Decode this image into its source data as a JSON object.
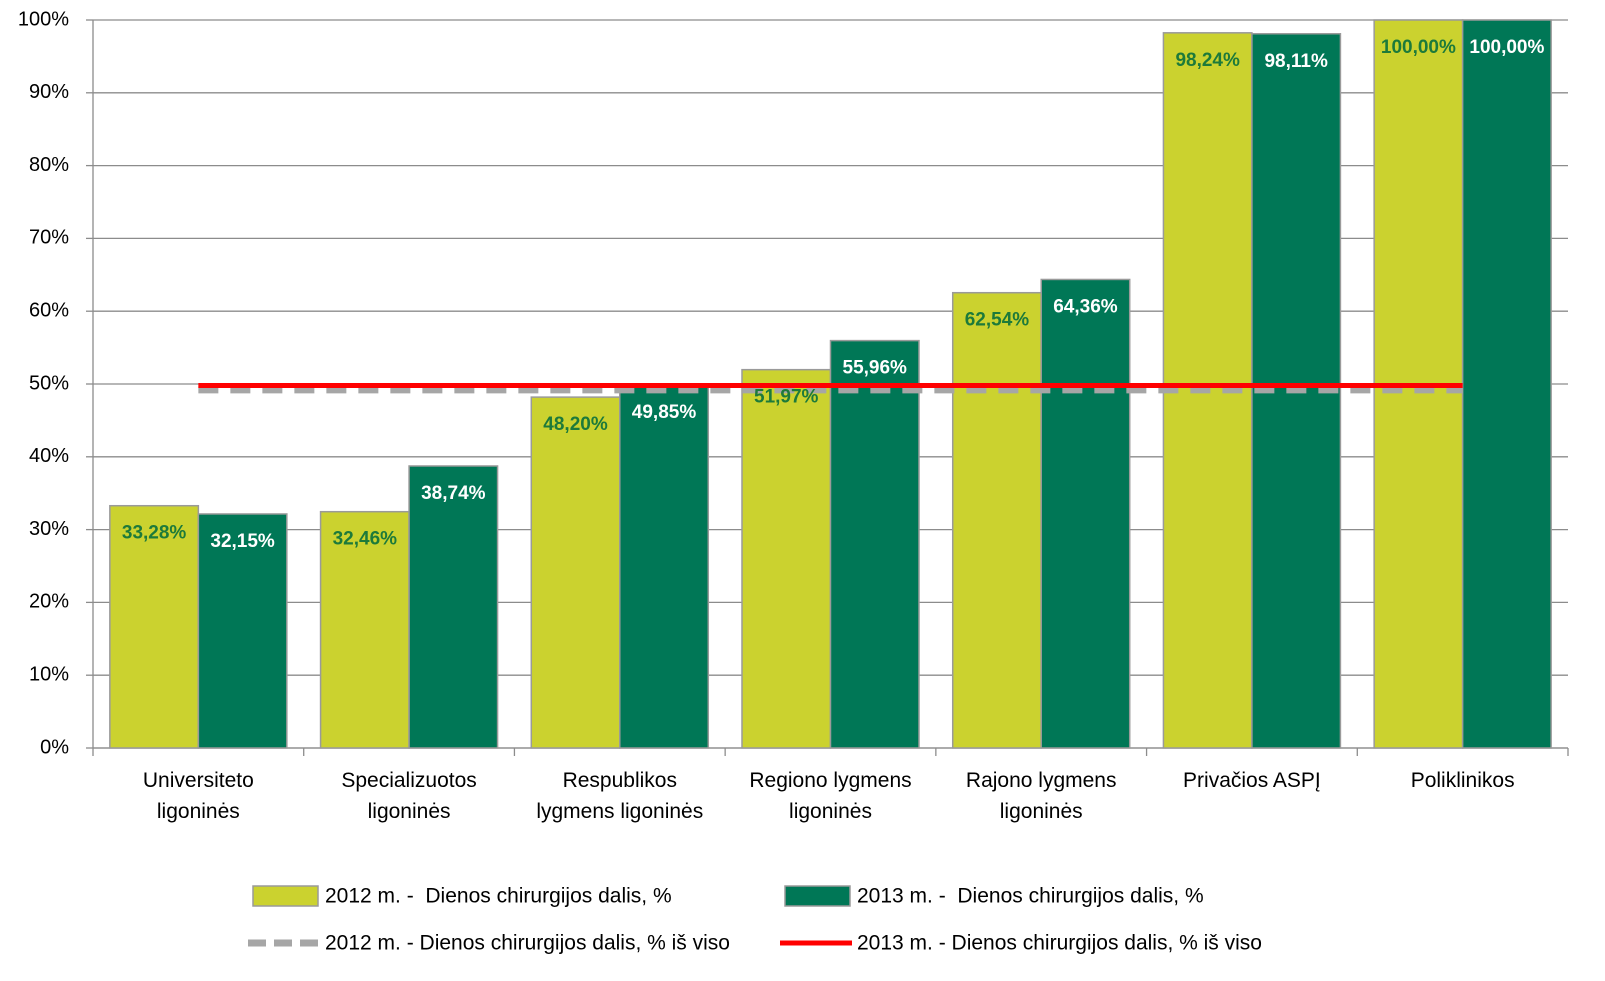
{
  "chart_data": {
    "type": "bar",
    "categories": [
      "Universiteto\nligoninės",
      "Specializuotos\nligoninės",
      "Respublikos\nlygmens ligoninės",
      "Regiono lygmens\nligoninės",
      "Rajono lygmens\nligoninės",
      "Privačios ASPĮ",
      "Poliklinikos"
    ],
    "series": [
      {
        "name": "2012 m. -  Dienos chirurgijos dalis, %",
        "type": "bar",
        "color": "#cbd22f",
        "label_color": "#1d7a3a",
        "values": [
          33.28,
          32.46,
          48.2,
          51.97,
          62.54,
          98.24,
          100.0
        ],
        "value_labels": [
          "33,28%",
          "32,46%",
          "48,20%",
          "51,97%",
          "62,54%",
          "98,24%",
          "100,00%"
        ]
      },
      {
        "name": "2013 m. -  Dienos chirurgijos dalis, %",
        "type": "bar",
        "color": "#007756",
        "label_color": "#ffffff",
        "values": [
          32.15,
          38.74,
          49.85,
          55.96,
          64.36,
          98.11,
          100.0
        ],
        "value_labels": [
          "32,15%",
          "38,74%",
          "49,85%",
          "55,96%",
          "64,36%",
          "98,11%",
          "100,00%"
        ]
      },
      {
        "name": "2012 m. - Dienos chirurgijos dalis, % iš viso",
        "type": "line",
        "dashed": true,
        "color": "#a6a6a6",
        "values": [
          49.2,
          49.2,
          49.2,
          49.2,
          49.2,
          49.2,
          49.2
        ]
      },
      {
        "name": "2013 m. - Dienos chirurgijos dalis, % iš viso",
        "type": "line",
        "dashed": false,
        "color": "#ff0000",
        "values": [
          49.8,
          49.8,
          49.8,
          49.8,
          49.8,
          49.8,
          49.8
        ]
      }
    ],
    "ylim": [
      0,
      100
    ],
    "yticks": [
      {
        "value": 0,
        "label": "0%"
      },
      {
        "value": 10,
        "label": "10%"
      },
      {
        "value": 20,
        "label": "20%"
      },
      {
        "value": 30,
        "label": "30%"
      },
      {
        "value": 40,
        "label": "40%"
      },
      {
        "value": 50,
        "label": "50%"
      },
      {
        "value": 60,
        "label": "60%"
      },
      {
        "value": 70,
        "label": "70%"
      },
      {
        "value": 80,
        "label": "80%"
      },
      {
        "value": 90,
        "label": "90%"
      },
      {
        "value": 100,
        "label": "100%"
      }
    ],
    "grid": true,
    "legend": "bottom"
  }
}
